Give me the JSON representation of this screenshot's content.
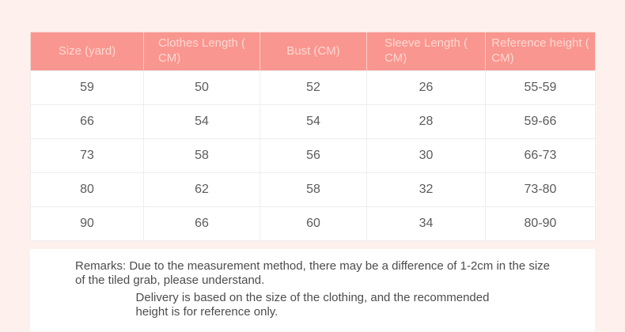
{
  "page": {
    "background_color": "#fdf0ed"
  },
  "colors": {
    "header_bg": "#f9968f",
    "header_text": "#ffd9d3",
    "cell_text": "#5b5b5b",
    "remarks_text": "#4c4c4c",
    "inner_border": "#ededed",
    "outer_border": "#f2ded9"
  },
  "table": {
    "columns": [
      "Size (yard)",
      "Clothes Length (\nCM)",
      "Bust (CM)",
      "Sleeve Length (\nCM)",
      "Reference height (\nCM)"
    ],
    "rows": [
      [
        "59",
        "50",
        "52",
        "26",
        "55-59"
      ],
      [
        "66",
        "54",
        "54",
        "28",
        "59-66"
      ],
      [
        "73",
        "58",
        "56",
        "30",
        "66-73"
      ],
      [
        "80",
        "62",
        "58",
        "32",
        "73-80"
      ],
      [
        "90",
        "66",
        "60",
        "34",
        "80-90"
      ]
    ]
  },
  "remarks": {
    "paragraphs": [
      "Remarks: Due to the measurement method, there may be a difference of 1-2cm in the size\nof the tiled grab, please understand.",
      "Delivery is based on the size of the clothing, and the recommended\nheight is for reference only."
    ]
  }
}
